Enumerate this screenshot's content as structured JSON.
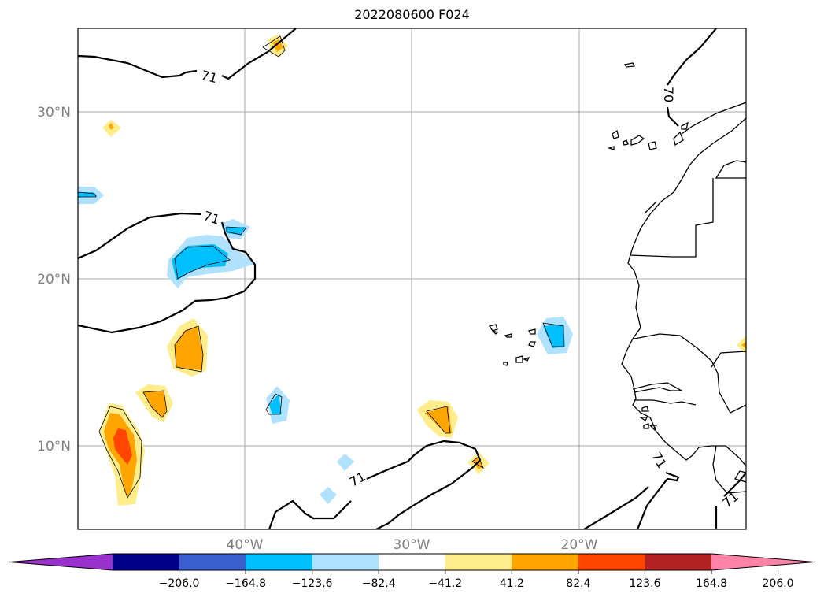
{
  "title": "2022080600 F024",
  "map": {
    "lat_labels": [
      "30°N",
      "20°N",
      "10°N"
    ],
    "lon_labels": [
      "40°W",
      "30°W",
      "20°W"
    ],
    "grid": true,
    "contour_labels": [
      "71",
      "71",
      "71",
      "71",
      "70",
      "71"
    ]
  },
  "colorbar": {
    "labels": [
      "−206.0",
      "−164.8",
      "−123.6",
      "−82.4",
      "−41.2",
      "41.2",
      "82.4",
      "123.6",
      "164.8",
      "206.0"
    ],
    "colors": [
      "#9932cc",
      "#00008b",
      "#3a5fcd",
      "#00bfff",
      "#b0e2ff",
      "#ffffff",
      "#ffec8b",
      "#ffa500",
      "#ff4500",
      "#b22222",
      "#ff83a8"
    ],
    "extend": "both"
  }
}
